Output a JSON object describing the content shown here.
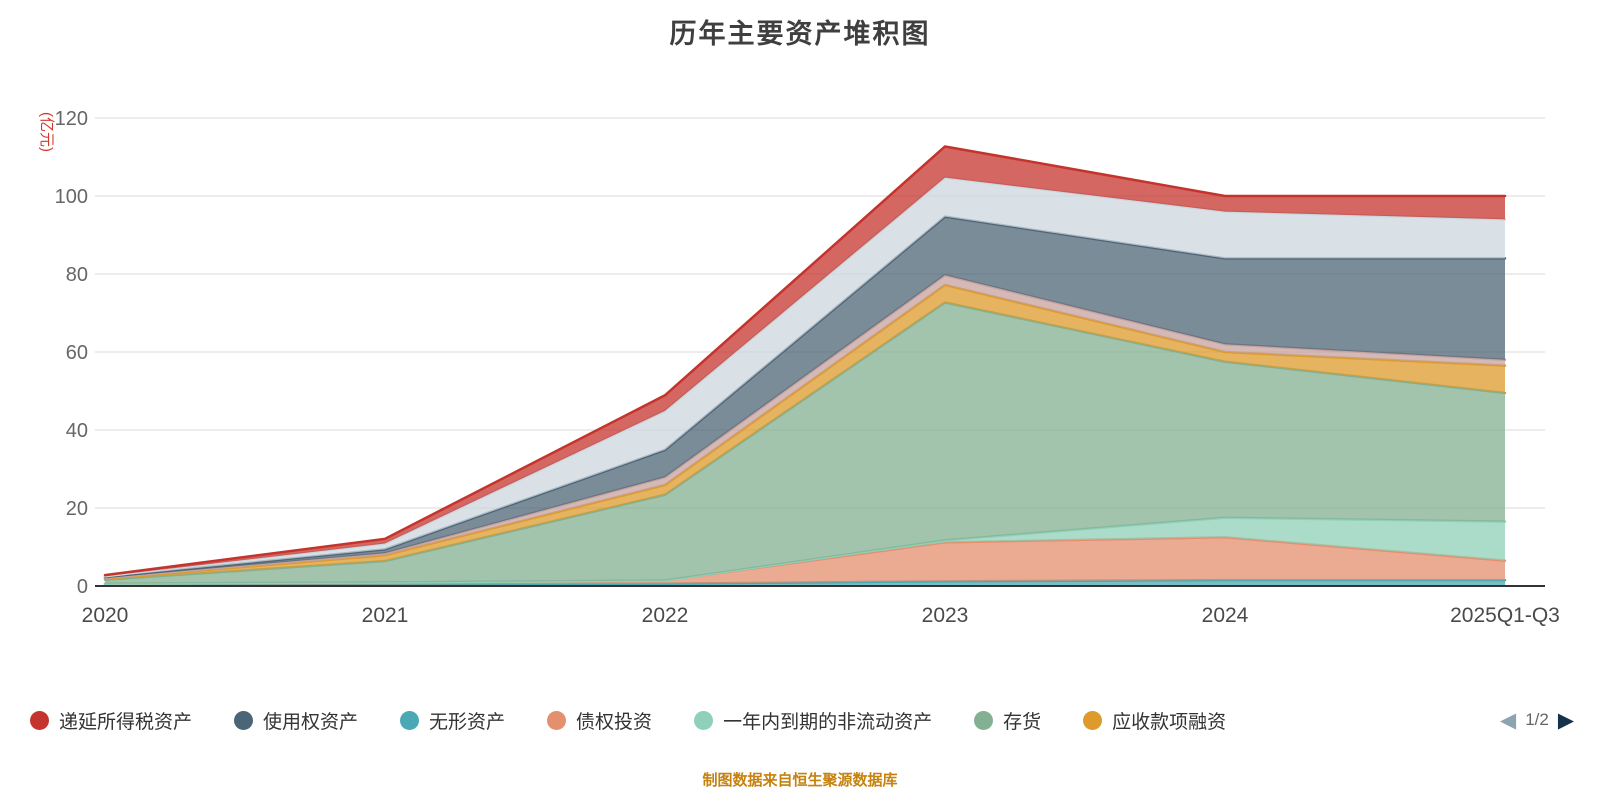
{
  "title": "历年主要资产堆积图",
  "y_axis": {
    "label": "(亿元)",
    "ticks": [
      0,
      20,
      40,
      60,
      80,
      100,
      120
    ]
  },
  "caption": "制图数据来自恒生聚源数据库",
  "legend": {
    "page": "1/2",
    "prev_icon": "◀",
    "next_icon": "▶",
    "items": [
      {
        "label": "递延所得税资产",
        "color": "#c5342c"
      },
      {
        "label": "使用权资产",
        "color": "#4c6576"
      },
      {
        "label": "无形资产",
        "color": "#4aa9b4"
      },
      {
        "label": "债权投资",
        "color": "#e48f6d"
      },
      {
        "label": "一年内到期的非流动资产",
        "color": "#8fd0b8"
      },
      {
        "label": "存货",
        "color": "#83b092"
      },
      {
        "label": "应收款项融资",
        "color": "#dd9b2b"
      }
    ]
  },
  "chart_data": {
    "type": "area",
    "stacked": true,
    "title": "历年主要资产堆积图",
    "xlabel": "",
    "ylabel": "(亿元)",
    "ylim": [
      0,
      120
    ],
    "grid": true,
    "legend_position": "bottom",
    "categories": [
      "2020",
      "2021",
      "2022",
      "2023",
      "2024",
      "2025Q1-Q3"
    ],
    "series": [
      {
        "name": "无形资产",
        "color": "#4aa9b4",
        "in_legend": true,
        "values": [
          0.3,
          0.4,
          0.6,
          1.2,
          1.5,
          1.5
        ]
      },
      {
        "name": "债权投资",
        "color": "#e48f6d",
        "in_legend": true,
        "values": [
          0.3,
          0.5,
          0.8,
          10,
          11,
          5
        ]
      },
      {
        "name": "一年内到期的非流动资产",
        "color": "#8fd0b8",
        "in_legend": true,
        "values": [
          0,
          0,
          0,
          0.5,
          5,
          10
        ]
      },
      {
        "name": "存货",
        "color": "#83b092",
        "in_legend": true,
        "values": [
          1.0,
          5.5,
          22,
          61,
          40,
          33
        ]
      },
      {
        "name": "应收款项融资",
        "color": "#dd9b2b",
        "in_legend": true,
        "values": [
          0.3,
          1.5,
          2.5,
          4.5,
          2.5,
          7
        ]
      },
      {
        "name": "",
        "color": "#c6a29f",
        "in_legend": false,
        "values": [
          0.2,
          0.5,
          2,
          2.5,
          2,
          1.5
        ]
      },
      {
        "name": "使用权资产",
        "color": "#4c6576",
        "in_legend": true,
        "values": [
          0.2,
          1.0,
          7,
          15,
          22,
          26
        ]
      },
      {
        "name": "",
        "color": "#ccd6de",
        "in_legend": false,
        "values": [
          0.2,
          1.5,
          10,
          10,
          12,
          10
        ]
      },
      {
        "name": "递延所得税资产",
        "color": "#c5342c",
        "in_legend": true,
        "values": [
          0.3,
          1.2,
          4,
          8,
          4,
          6
        ]
      }
    ]
  }
}
